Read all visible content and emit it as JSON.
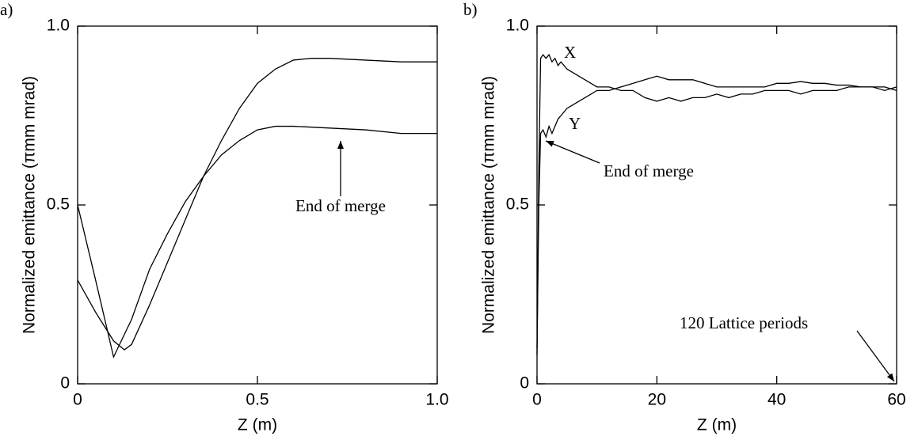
{
  "chart_data": [
    {
      "type": "line",
      "panel_label": "a)",
      "xlabel": "Z (m)",
      "ylabel": "Normalized emittance (πmm mrad)",
      "xlim": [
        0,
        1
      ],
      "ylim": [
        0,
        1
      ],
      "xticks": [
        0,
        0.5,
        {
          "value": 1,
          "label": "1.0"
        }
      ],
      "yticks": [
        0,
        0.5,
        {
          "value": 1,
          "label": "1.0"
        }
      ],
      "series": [
        {
          "color": "#000000",
          "x": [
            0,
            0.05,
            0.1,
            0.13,
            0.15,
            0.2,
            0.25,
            0.3,
            0.35,
            0.4,
            0.45,
            0.5,
            0.55,
            0.6,
            0.65,
            0.7,
            0.8,
            0.9,
            1.0
          ],
          "values": [
            0.29,
            0.2,
            0.12,
            0.095,
            0.11,
            0.22,
            0.34,
            0.46,
            0.58,
            0.68,
            0.77,
            0.84,
            0.88,
            0.905,
            0.91,
            0.91,
            0.905,
            0.9,
            0.9
          ]
        },
        {
          "color": "#000000",
          "x": [
            0,
            0.05,
            0.1,
            0.15,
            0.2,
            0.25,
            0.3,
            0.35,
            0.4,
            0.45,
            0.5,
            0.55,
            0.6,
            0.7,
            0.8,
            0.9,
            1.0
          ],
          "values": [
            0.5,
            0.29,
            0.075,
            0.18,
            0.32,
            0.42,
            0.51,
            0.58,
            0.64,
            0.68,
            0.71,
            0.72,
            0.72,
            0.715,
            0.71,
            0.7,
            0.7
          ]
        }
      ],
      "annotations": [
        {
          "text": "End of merge"
        }
      ]
    },
    {
      "type": "line",
      "panel_label": "b)",
      "xlabel": "Z (m)",
      "ylabel": "Normalized emittance (πmm mrad)",
      "xlim": [
        0,
        60
      ],
      "ylim": [
        0,
        1
      ],
      "xticks": [
        0,
        20,
        40,
        60
      ],
      "yticks": [
        0,
        0.5,
        {
          "value": 1,
          "label": "1.0"
        }
      ],
      "series": [
        {
          "name": "X",
          "color": "#000000",
          "x": [
            0,
            0.3,
            0.6,
            1,
            1.5,
            2,
            2.5,
            3,
            3.5,
            4,
            5,
            6,
            7,
            8,
            9,
            10,
            12,
            14,
            16,
            18,
            20,
            22,
            24,
            26,
            28,
            30,
            32,
            34,
            36,
            38,
            40,
            42,
            44,
            46,
            48,
            50,
            52,
            54,
            56,
            58,
            60
          ],
          "values": [
            0.08,
            0.6,
            0.91,
            0.92,
            0.91,
            0.92,
            0.9,
            0.91,
            0.89,
            0.9,
            0.88,
            0.87,
            0.86,
            0.85,
            0.84,
            0.83,
            0.83,
            0.82,
            0.82,
            0.8,
            0.79,
            0.8,
            0.79,
            0.8,
            0.8,
            0.81,
            0.8,
            0.81,
            0.81,
            0.82,
            0.82,
            0.82,
            0.81,
            0.82,
            0.82,
            0.82,
            0.83,
            0.83,
            0.83,
            0.82,
            0.83
          ]
        },
        {
          "name": "Y",
          "color": "#000000",
          "x": [
            0,
            0.3,
            0.6,
            1,
            1.5,
            2,
            2.5,
            3,
            3.5,
            4,
            5,
            6,
            7,
            8,
            9,
            10,
            12,
            14,
            16,
            18,
            20,
            22,
            24,
            26,
            28,
            30,
            32,
            34,
            36,
            38,
            40,
            42,
            44,
            46,
            48,
            50,
            52,
            54,
            56,
            58,
            60
          ],
          "values": [
            0.1,
            0.5,
            0.7,
            0.71,
            0.69,
            0.72,
            0.7,
            0.72,
            0.74,
            0.75,
            0.77,
            0.78,
            0.79,
            0.8,
            0.81,
            0.82,
            0.82,
            0.83,
            0.84,
            0.85,
            0.86,
            0.85,
            0.85,
            0.85,
            0.84,
            0.83,
            0.83,
            0.83,
            0.83,
            0.83,
            0.84,
            0.84,
            0.845,
            0.84,
            0.84,
            0.835,
            0.835,
            0.83,
            0.83,
            0.83,
            0.82
          ]
        }
      ],
      "annotations": [
        {
          "text": "End of merge"
        },
        {
          "text": "120 Lattice periods"
        }
      ]
    }
  ]
}
